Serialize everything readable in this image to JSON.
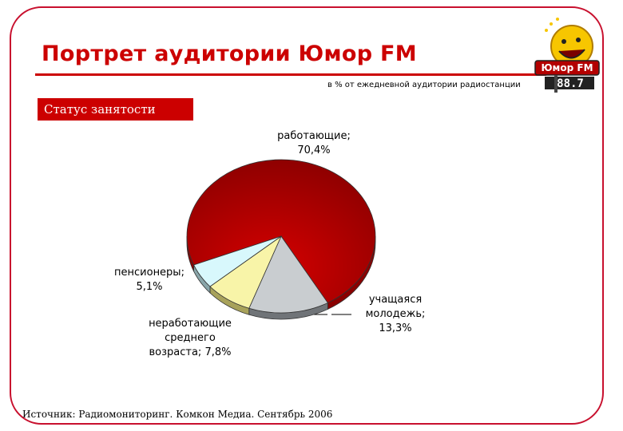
{
  "title": "Портрет аудитории Юмор FM",
  "subtitle": "в % от ежедневной аудитории радиостанции",
  "section_label": "Статус занятости",
  "source": "Источник: Радиомониторинг. Комкон Медиа. Сентябрь 2006",
  "logo": {
    "text_top": "Юмор FM",
    "text_freq": "88.7",
    "icon": "smiley-microphone-logo"
  },
  "colors": {
    "brand_red": "#cc0000",
    "frame_red": "#c8102e"
  },
  "chart_data": {
    "type": "pie",
    "title": "",
    "slices": [
      {
        "label": "работающие",
        "value": 70.4,
        "label_text": "работающие;\n70,4%",
        "color": "#d40000",
        "dark": "#8a0000"
      },
      {
        "label": "учащаяся молодежь",
        "value": 13.3,
        "label_text": "учащаяся\nмолодежь;\n13,3%",
        "color": "#c9cdd0",
        "dark": "#707478"
      },
      {
        "label": "неработающие среднего возраста",
        "value": 7.8,
        "label_text": "неработающие\nсреднего\nвозраста; 7,8%",
        "color": "#f8f4a8",
        "dark": "#a8a25a"
      },
      {
        "label": "пенсионеры",
        "value": 5.1,
        "label_text": "пенсионеры;\n5,1%",
        "color": "#d8f8fc",
        "dark": "#8aa6aa"
      }
    ],
    "style": "3d"
  }
}
